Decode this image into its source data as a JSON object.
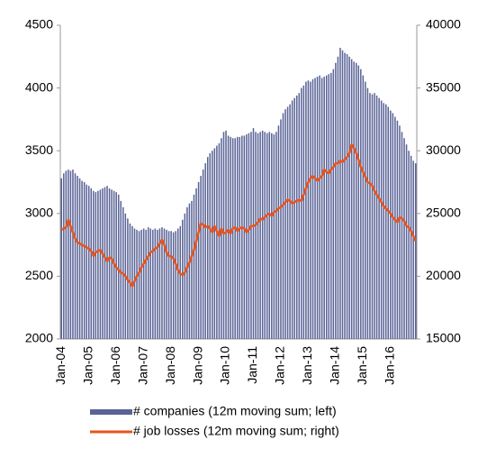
{
  "chart_data": {
    "type": "bar",
    "categories": [
      "Jan-04",
      null,
      null,
      null,
      null,
      null,
      null,
      null,
      null,
      null,
      null,
      null,
      "Jan-05",
      null,
      null,
      null,
      null,
      null,
      null,
      null,
      null,
      null,
      null,
      null,
      "Jan-06",
      null,
      null,
      null,
      null,
      null,
      null,
      null,
      null,
      null,
      null,
      null,
      "Jan-07",
      null,
      null,
      null,
      null,
      null,
      null,
      null,
      null,
      null,
      null,
      null,
      "Jan-08",
      null,
      null,
      null,
      null,
      null,
      null,
      null,
      null,
      null,
      null,
      null,
      "Jan-09",
      null,
      null,
      null,
      null,
      null,
      null,
      null,
      null,
      null,
      null,
      null,
      "Jan-10",
      null,
      null,
      null,
      null,
      null,
      null,
      null,
      null,
      null,
      null,
      null,
      "Jan-11",
      null,
      null,
      null,
      null,
      null,
      null,
      null,
      null,
      null,
      null,
      null,
      "Jan-12",
      null,
      null,
      null,
      null,
      null,
      null,
      null,
      null,
      null,
      null,
      null,
      "Jan-13",
      null,
      null,
      null,
      null,
      null,
      null,
      null,
      null,
      null,
      null,
      null,
      "Jan-14",
      null,
      null,
      null,
      null,
      null,
      null,
      null,
      null,
      null,
      null,
      null,
      "Jan-15",
      null,
      null,
      null,
      null,
      null,
      null,
      null,
      null,
      null,
      null,
      null,
      "Jan-16",
      null,
      null,
      null,
      null,
      null,
      null,
      null,
      null,
      null,
      null,
      null
    ],
    "series": [
      {
        "name": "# companies (12m moving sum; left)",
        "type": "bar",
        "color": "#5a6396",
        "values": [
          3280,
          3320,
          3340,
          3350,
          3340,
          3350,
          3320,
          3300,
          3280,
          3260,
          3250,
          3230,
          3220,
          3200,
          3180,
          3170,
          3180,
          3190,
          3200,
          3210,
          3220,
          3200,
          3190,
          3180,
          3170,
          3150,
          3100,
          3050,
          3000,
          2960,
          2920,
          2900,
          2880,
          2870,
          2860,
          2870,
          2880,
          2870,
          2890,
          2880,
          2870,
          2880,
          2870,
          2880,
          2890,
          2880,
          2870,
          2860,
          2860,
          2850,
          2860,
          2880,
          2900,
          2950,
          3000,
          3050,
          3080,
          3100,
          3150,
          3200,
          3250,
          3300,
          3350,
          3400,
          3450,
          3480,
          3500,
          3520,
          3540,
          3560,
          3600,
          3650,
          3660,
          3620,
          3610,
          3600,
          3600,
          3610,
          3610,
          3620,
          3620,
          3630,
          3640,
          3650,
          3680,
          3650,
          3640,
          3650,
          3660,
          3650,
          3640,
          3650,
          3640,
          3630,
          3650,
          3700,
          3750,
          3800,
          3830,
          3850,
          3870,
          3900,
          3920,
          3940,
          3960,
          4000,
          4020,
          4050,
          4060,
          4050,
          4070,
          4080,
          4090,
          4100,
          4080,
          4090,
          4100,
          4110,
          4120,
          4150,
          4200,
          4250,
          4320,
          4300,
          4280,
          4270,
          4250,
          4230,
          4210,
          4200,
          4180,
          4150,
          4100,
          4050,
          4000,
          3960,
          3950,
          3960,
          3940,
          3920,
          3900,
          3880,
          3870,
          3850,
          3820,
          3800,
          3770,
          3740,
          3700,
          3650,
          3600,
          3550,
          3500,
          3460,
          3420,
          3400
        ]
      },
      {
        "name": "# job losses (12m moving sum; right)",
        "type": "line",
        "axis": "y2",
        "color": "#e8541e",
        "values": [
          23700,
          23800,
          23900,
          24500,
          24000,
          23500,
          23000,
          22700,
          22600,
          22500,
          22400,
          22300,
          22200,
          22000,
          21600,
          21900,
          22000,
          22100,
          21800,
          21500,
          21200,
          21500,
          21400,
          21000,
          20700,
          20500,
          20300,
          20200,
          20000,
          19700,
          19500,
          19200,
          19600,
          20000,
          20300,
          20700,
          21000,
          21300,
          21600,
          21900,
          22000,
          22200,
          22300,
          22600,
          22900,
          22500,
          21900,
          21600,
          21600,
          21400,
          21000,
          20500,
          20200,
          20100,
          20300,
          20700,
          21100,
          21600,
          22100,
          22800,
          23500,
          24200,
          24100,
          23900,
          24000,
          23800,
          23500,
          24000,
          23600,
          23200,
          23800,
          23400,
          23500,
          23700,
          23400,
          23800,
          23900,
          23600,
          23800,
          23900,
          23800,
          23500,
          23700,
          24000,
          24000,
          24100,
          24300,
          24600,
          24500,
          24700,
          24900,
          25000,
          24800,
          25100,
          25200,
          25400,
          25500,
          25700,
          25900,
          26100,
          26000,
          25800,
          25900,
          26000,
          26100,
          26000,
          26500,
          27000,
          27500,
          27800,
          28000,
          27800,
          27600,
          27800,
          28000,
          28500,
          28300,
          28200,
          28500,
          28700,
          29000,
          29000,
          29200,
          29100,
          29300,
          29500,
          29800,
          30500,
          30200,
          29800,
          29300,
          28700,
          28300,
          27900,
          27500,
          27400,
          27200,
          26800,
          26500,
          26200,
          25900,
          25600,
          25400,
          25200,
          25000,
          24700,
          24500,
          24300,
          24700,
          24600,
          24400,
          24000,
          23900,
          23600,
          23200,
          22800
        ]
      }
    ],
    "ylim": [
      2000,
      4500
    ],
    "yticks": [
      2000,
      2500,
      3000,
      3500,
      4000,
      4500
    ],
    "y2lim": [
      15000,
      40000
    ],
    "y2ticks": [
      15000,
      20000,
      25000,
      30000,
      35000,
      40000
    ],
    "grid": false,
    "legend": "bottom"
  }
}
